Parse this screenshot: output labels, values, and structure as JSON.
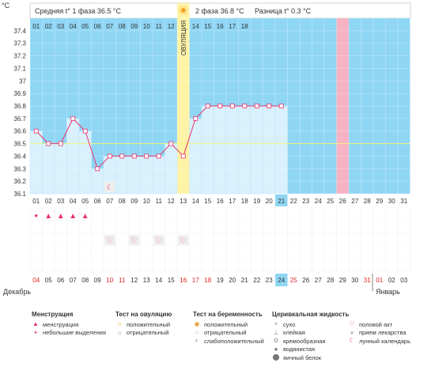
{
  "unit_label": "°C",
  "header": {
    "phase1": "Средняя t° 1 фаза 36.5 °C",
    "phase2": "2 фаза 36.8 °C",
    "diff": "Разница t° 0.3 °C",
    "ovulation": "ОВУЛЯЦИЯ"
  },
  "chart_data": {
    "type": "line",
    "ylim": [
      36.1,
      37.5
    ],
    "y_ticks": [
      "36.1",
      "36.2",
      "36.3",
      "36.4",
      "36.5",
      "36.6",
      "36.7",
      "36.8",
      "36.9",
      "37",
      "37.1",
      "37.2",
      "37.3",
      "37.4",
      "°C"
    ],
    "cycle_days": [
      "01",
      "02",
      "03",
      "04",
      "05",
      "06",
      "07",
      "08",
      "09",
      "10",
      "11",
      "12",
      "13",
      "14",
      "15",
      "16",
      "17",
      "18"
    ],
    "dates": [
      "01",
      "02",
      "03",
      "04",
      "05",
      "06",
      "07",
      "08",
      "09",
      "10",
      "11",
      "12",
      "13",
      "14",
      "15",
      "16",
      "17",
      "18",
      "19",
      "20",
      "21",
      "22",
      "23",
      "24",
      "25",
      "26",
      "27",
      "28",
      "29",
      "30",
      "31"
    ],
    "temperatures": [
      36.6,
      36.5,
      36.5,
      36.7,
      36.6,
      36.3,
      36.4,
      36.4,
      36.4,
      36.4,
      36.4,
      36.5,
      36.4,
      36.7,
      36.8,
      36.8,
      36.8,
      36.8,
      36.8,
      36.8,
      36.8
    ],
    "coverline": 36.5,
    "ovulation_index": 12,
    "marked_index": 25,
    "today_index": 20
  },
  "markers": {
    "moon_index": 6,
    "heavy_menstruation": [
      1,
      2,
      3,
      4
    ],
    "light_menstruation": [
      0
    ],
    "intercourse": [
      6,
      8,
      10,
      12
    ]
  },
  "calendar": {
    "days": [
      "04",
      "05",
      "06",
      "07",
      "08",
      "09",
      "10",
      "11",
      "12",
      "13",
      "14",
      "15",
      "16",
      "17",
      "18",
      "19",
      "20",
      "21",
      "22",
      "23",
      "24",
      "25",
      "26",
      "27",
      "28",
      "29",
      "30",
      "31",
      "01",
      "02",
      "03"
    ],
    "red_indices": [
      0,
      6,
      7,
      12,
      13,
      14,
      21,
      27,
      28
    ],
    "today_index": 20,
    "month_left": "Декабрь",
    "month_right": "Январь"
  },
  "legend": {
    "menstruation": {
      "title": "Менструация",
      "items": [
        "менструация",
        "небольшие выделения"
      ]
    },
    "ovulation_test": {
      "title": "Тест на овуляцию",
      "items": [
        "положительный",
        "отрицательный"
      ]
    },
    "pregnancy_test": {
      "title": "Тест на беременность",
      "items": [
        "положительный",
        "отрицательный",
        "слабоположительный"
      ]
    },
    "cervical": {
      "title": "Церивкальная жидкость",
      "items": [
        "сухо",
        "клейкая",
        "кремообразная",
        "водянистая",
        "яичный белок"
      ]
    },
    "other": {
      "items": [
        "половой акт",
        "прием лекарства",
        "лунный календарь"
      ]
    },
    "colors": {
      "sky": "#8fd6f4",
      "bar": "#d8f1fd",
      "line": "#e8336c",
      "ovulation": "#fff3a6",
      "marked": "#f6b3c4",
      "today": "#8fd6f4"
    }
  }
}
